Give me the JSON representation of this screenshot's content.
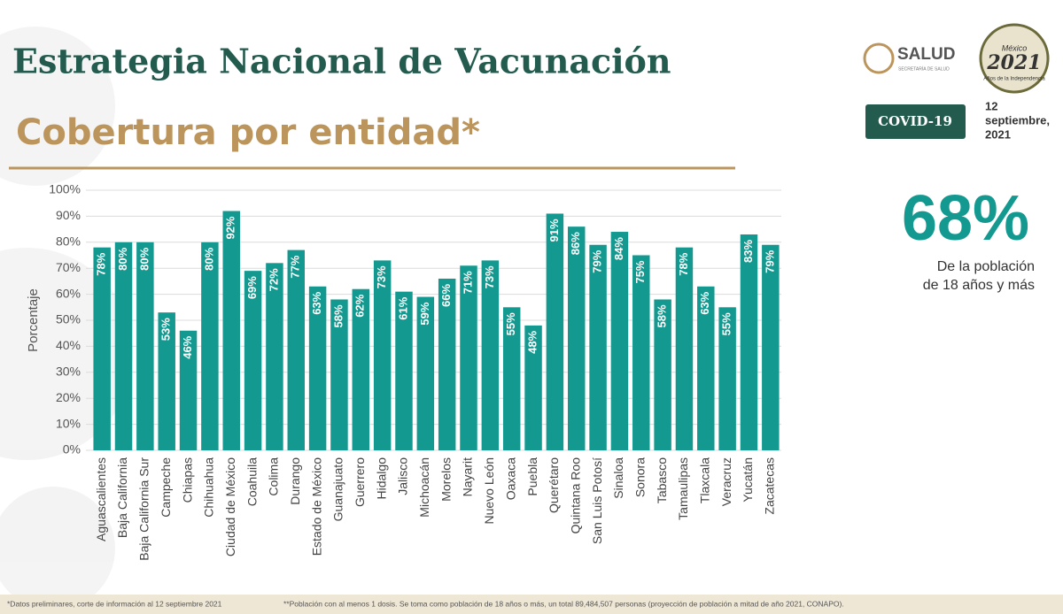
{
  "header": {
    "title": "Estrategia Nacional de Vacunación",
    "subtitle": "Cobertura por entidad*"
  },
  "logos": {
    "salud": "SALUD",
    "salud_sub": "SECRETARÍA DE SALUD",
    "year_top": "México",
    "year": "2021",
    "year_sub": "Años de la Independencia"
  },
  "badge": "COVID-19",
  "date_lines": [
    "12",
    "septiembre,",
    "2021"
  ],
  "highlight": {
    "value": "68%",
    "caption_lines": [
      "De la población",
      "de 18 años y más"
    ]
  },
  "chart_data": {
    "type": "bar",
    "y_label": "Porcentaje",
    "categories": [
      "Aguascalientes",
      "Baja California",
      "Baja California Sur",
      "Campeche",
      "Chiapas",
      "Chihuahua",
      "Ciudad de México",
      "Coahuila",
      "Colima",
      "Durango",
      "Estado de México",
      "Guanajuato",
      "Guerrero",
      "Hidalgo",
      "Jalisco",
      "Michoacán",
      "Morelos",
      "Nayarit",
      "Nuevo León",
      "Oaxaca",
      "Puebla",
      "Querétaro",
      "Quintana Roo",
      "San Luis Potosí",
      "Sinaloa",
      "Sonora",
      "Tabasco",
      "Tamaulipas",
      "Tlaxcala",
      "Veracruz",
      "Yucatán",
      "Zacatecas"
    ],
    "values": [
      78,
      80,
      80,
      53,
      46,
      80,
      92,
      69,
      72,
      77,
      63,
      58,
      62,
      73,
      61,
      59,
      66,
      71,
      73,
      55,
      48,
      91,
      86,
      79,
      84,
      75,
      58,
      78,
      63,
      55,
      83,
      79
    ],
    "value_labels": [
      "78%",
      "80%",
      "80%",
      "53%",
      "46%",
      "80%",
      "92%",
      "69%",
      "72%",
      "77%",
      "63%",
      "58%",
      "62%",
      "73%",
      "61%",
      "59%",
      "66%",
      "71%",
      "73%",
      "55%",
      "48%",
      "91%",
      "86%",
      "79%",
      "84%",
      "75%",
      "58%",
      "78%",
      "63%",
      "55%",
      "83%",
      "79%"
    ],
    "color": "#13998f",
    "ylim": [
      0,
      100
    ],
    "yticks": [
      {
        "value": 0,
        "label": "0%"
      },
      {
        "value": 10,
        "label": "10%"
      },
      {
        "value": 20,
        "label": "20%"
      },
      {
        "value": 30,
        "label": "30%"
      },
      {
        "value": 40,
        "label": "40%"
      },
      {
        "value": 50,
        "label": "50%"
      },
      {
        "value": 60,
        "label": "60%"
      },
      {
        "value": 70,
        "label": "70%"
      },
      {
        "value": 80,
        "label": "80%"
      },
      {
        "value": 90,
        "label": "90%"
      },
      {
        "value": 100,
        "label": "100%"
      }
    ],
    "grid": true
  },
  "footer": {
    "note1": "*Datos preliminares, corte de información al 12 septiembre 2021",
    "note2": "**Población con al menos 1 dosis. Se toma como población de 18 años o más, un total 89,484,507 personas (proyección de población a mitad de año 2021, CONAPO)."
  }
}
